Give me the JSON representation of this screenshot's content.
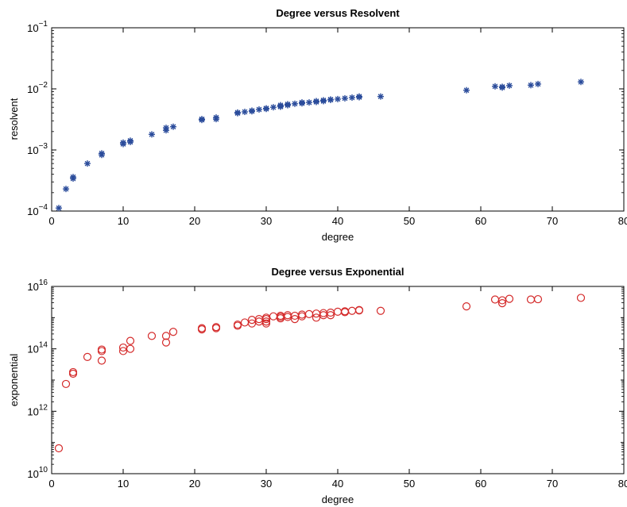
{
  "chart_data": [
    {
      "type": "scatter",
      "title": "Degree versus Resolvent",
      "xlabel": "degree",
      "ylabel": "resolvent",
      "xlim": [
        0,
        80
      ],
      "ylim": [
        0.0001,
        0.1
      ],
      "yscale": "log",
      "xticks": [
        0,
        10,
        20,
        30,
        40,
        50,
        60,
        70,
        80
      ],
      "xtick_labels": [
        "0",
        "10",
        "20",
        "30",
        "40",
        "50",
        "60",
        "70",
        "80"
      ],
      "yticks": [
        0.0001,
        0.001,
        0.01,
        0.1
      ],
      "ytick_labels": [
        {
          "base": "10",
          "exp": "−4"
        },
        {
          "base": "10",
          "exp": "−3"
        },
        {
          "base": "10",
          "exp": "−2"
        },
        {
          "base": "10",
          "exp": "−1"
        }
      ],
      "grid": false,
      "marker": "asterisk",
      "color": "#2b4c9b",
      "x": [
        1,
        2,
        3,
        3,
        5,
        7,
        7,
        10,
        10,
        11,
        11,
        14,
        16,
        16,
        17,
        21,
        21,
        23,
        23,
        26,
        26,
        27,
        28,
        28,
        29,
        30,
        30,
        31,
        32,
        32,
        32,
        33,
        33,
        34,
        35,
        35,
        36,
        37,
        37,
        38,
        38,
        39,
        39,
        40,
        41,
        42,
        43,
        43,
        46,
        58,
        62,
        63,
        63,
        64,
        67,
        68,
        74
      ],
      "y": [
        0.000112,
        0.00023,
        0.00034,
        0.00036,
        0.0006,
        0.00083,
        0.00088,
        0.00125,
        0.00132,
        0.00135,
        0.00142,
        0.0018,
        0.0021,
        0.0023,
        0.0024,
        0.0031,
        0.0032,
        0.0032,
        0.0034,
        0.004,
        0.0041,
        0.0042,
        0.0043,
        0.0044,
        0.0046,
        0.0047,
        0.0048,
        0.005,
        0.0051,
        0.0052,
        0.0054,
        0.0054,
        0.0056,
        0.0057,
        0.0058,
        0.006,
        0.006,
        0.0061,
        0.0063,
        0.0063,
        0.0065,
        0.0066,
        0.0067,
        0.0068,
        0.007,
        0.0072,
        0.0073,
        0.0075,
        0.0075,
        0.0095,
        0.011,
        0.0105,
        0.0108,
        0.0113,
        0.0115,
        0.012,
        0.013
      ]
    },
    {
      "type": "scatter",
      "title": "Degree versus Exponential",
      "xlabel": "degree",
      "ylabel": "exponential",
      "xlim": [
        0,
        80
      ],
      "ylim": [
        10000000000.0,
        1e+16
      ],
      "yscale": "log",
      "xticks": [
        0,
        10,
        20,
        30,
        40,
        50,
        60,
        70,
        80
      ],
      "xtick_labels": [
        "0",
        "10",
        "20",
        "30",
        "40",
        "50",
        "60",
        "70",
        "80"
      ],
      "yticks": [
        10000000000.0,
        1000000000000.0,
        100000000000000.0,
        1e+16
      ],
      "ytick_labels": [
        {
          "base": "10",
          "exp": "10"
        },
        {
          "base": "10",
          "exp": "12"
        },
        {
          "base": "10",
          "exp": "14"
        },
        {
          "base": "10",
          "exp": "16"
        }
      ],
      "grid": false,
      "marker": "circle",
      "color": "#d42a2a",
      "x": [
        1,
        2,
        3,
        3,
        5,
        7,
        7,
        7,
        10,
        10,
        11,
        11,
        14,
        16,
        16,
        17,
        21,
        21,
        23,
        23,
        26,
        26,
        27,
        28,
        28,
        29,
        29,
        30,
        30,
        30,
        30,
        31,
        32,
        32,
        32,
        33,
        33,
        34,
        34,
        35,
        35,
        36,
        37,
        37,
        38,
        38,
        39,
        39,
        40,
        41,
        41,
        42,
        43,
        43,
        46,
        58,
        62,
        63,
        63,
        64,
        67,
        68,
        74
      ],
      "y": [
        65000000000.0,
        7500000000000.0,
        16000000000000.0,
        18000000000000.0,
        55000000000000.0,
        42000000000000.0,
        85000000000000.0,
        95000000000000.0,
        85000000000000.0,
        110000000000000.0,
        100000000000000.0,
        180000000000000.0,
        260000000000000.0,
        160000000000000.0,
        260000000000000.0,
        350000000000000.0,
        420000000000000.0,
        460000000000000.0,
        460000000000000.0,
        500000000000000.0,
        550000000000000.0,
        600000000000000.0,
        700000000000000.0,
        650000000000000.0,
        850000000000000.0,
        750000000000000.0,
        900000000000000.0,
        650000000000000.0,
        750000000000000.0,
        900000000000000.0,
        1000000000000000.0,
        1100000000000000.0,
        950000000000000.0,
        1050000000000000.0,
        1150000000000000.0,
        1050000000000000.0,
        1200000000000000.0,
        900000000000000.0,
        1150000000000000.0,
        1100000000000000.0,
        1250000000000000.0,
        1300000000000000.0,
        1000000000000000.0,
        1350000000000000.0,
        1200000000000000.0,
        1400000000000000.0,
        1200000000000000.0,
        1450000000000000.0,
        1550000000000000.0,
        1500000000000000.0,
        1600000000000000.0,
        1650000000000000.0,
        1700000000000000.0,
        1750000000000000.0,
        1650000000000000.0,
        2300000000000000.0,
        3800000000000000.0,
        2900000000000000.0,
        3600000000000000.0,
        4000000000000000.0,
        3800000000000000.0,
        3900000000000000.0,
        4300000000000000.0
      ]
    }
  ]
}
